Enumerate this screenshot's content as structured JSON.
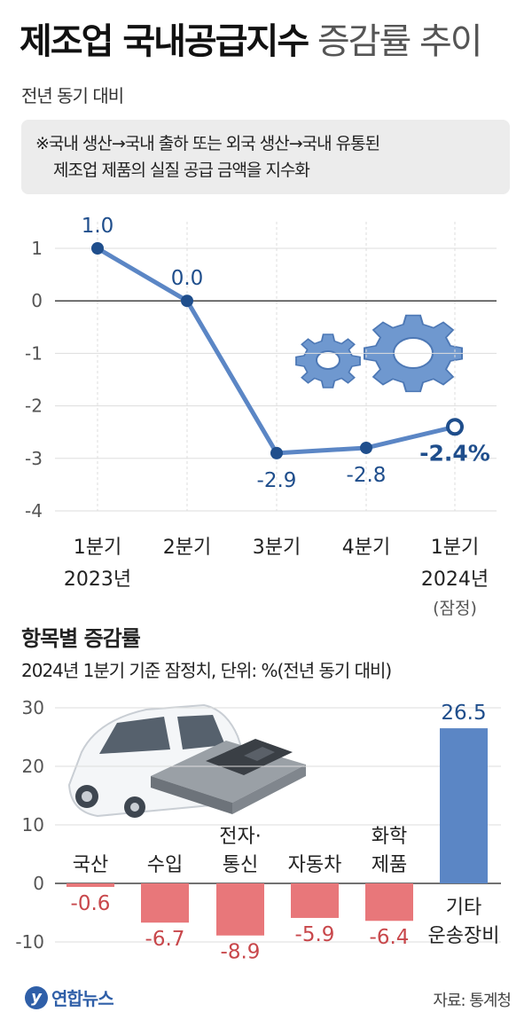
{
  "title": {
    "bold": "제조업 국내공급지수",
    "light": " 증감률 추이"
  },
  "subtitle": "전년 동기 대비",
  "note": {
    "line1": "※국내 생산→국내 출하 또는 외국 생산→국내 유통된",
    "line2": "제조업 제품의 실질 공급 금액을 지수화"
  },
  "section": {
    "title": "항목별 증감률",
    "subtitle": "2024년 1분기 기준 잠정치, 단위: %(전년 동기 대비)"
  },
  "footer": {
    "logo_mark": "y",
    "logo_text": "연합뉴스",
    "source": "자료: 통계청"
  },
  "colors": {
    "line": "#5b86c5",
    "point": "#1f4e8c",
    "positive_bar": "#5b86c5",
    "negative_bar": "#e8777a",
    "negative_label": "#c8474b",
    "positive_label": "#1f4e8c",
    "grid": "#dddddd"
  },
  "icons": [
    "gear-icon",
    "car-icon",
    "microchip-icon",
    "yonhap-logo-icon"
  ],
  "chart_data": [
    {
      "type": "line",
      "x": [
        "1분기\n2023년",
        "2분기",
        "3분기",
        "4분기",
        "1분기\n2024년"
      ],
      "x_note": "(잠정)",
      "values": [
        1.0,
        0.0,
        -2.9,
        -2.8,
        -2.4
      ],
      "value_labels": [
        "1.0",
        "0.0",
        "-2.9",
        "-2.8",
        "-2.4%"
      ],
      "ylim": [
        -4,
        1
      ],
      "yticks": [
        1,
        0,
        -1,
        -2,
        -3,
        -4
      ],
      "ytick_labels": [
        "1",
        "0",
        "-1",
        "-2",
        "-3",
        "-4"
      ],
      "last_point_hollow": true,
      "grid": true
    },
    {
      "type": "bar",
      "categories": [
        "국산",
        "수입",
        "전자·\n통신",
        "자동차",
        "화학\n제품",
        "기타\n운송장비"
      ],
      "values": [
        -0.6,
        -6.7,
        -8.9,
        -5.9,
        -6.4,
        26.5
      ],
      "value_labels": [
        "-0.6",
        "-6.7",
        "-8.9",
        "-5.9",
        "-6.4",
        "26.5"
      ],
      "ylim": [
        -10,
        30
      ],
      "yticks": [
        30,
        20,
        10,
        0,
        -10
      ],
      "ytick_labels": [
        "30",
        "20",
        "10",
        "0",
        "-10"
      ],
      "grid": true
    }
  ]
}
